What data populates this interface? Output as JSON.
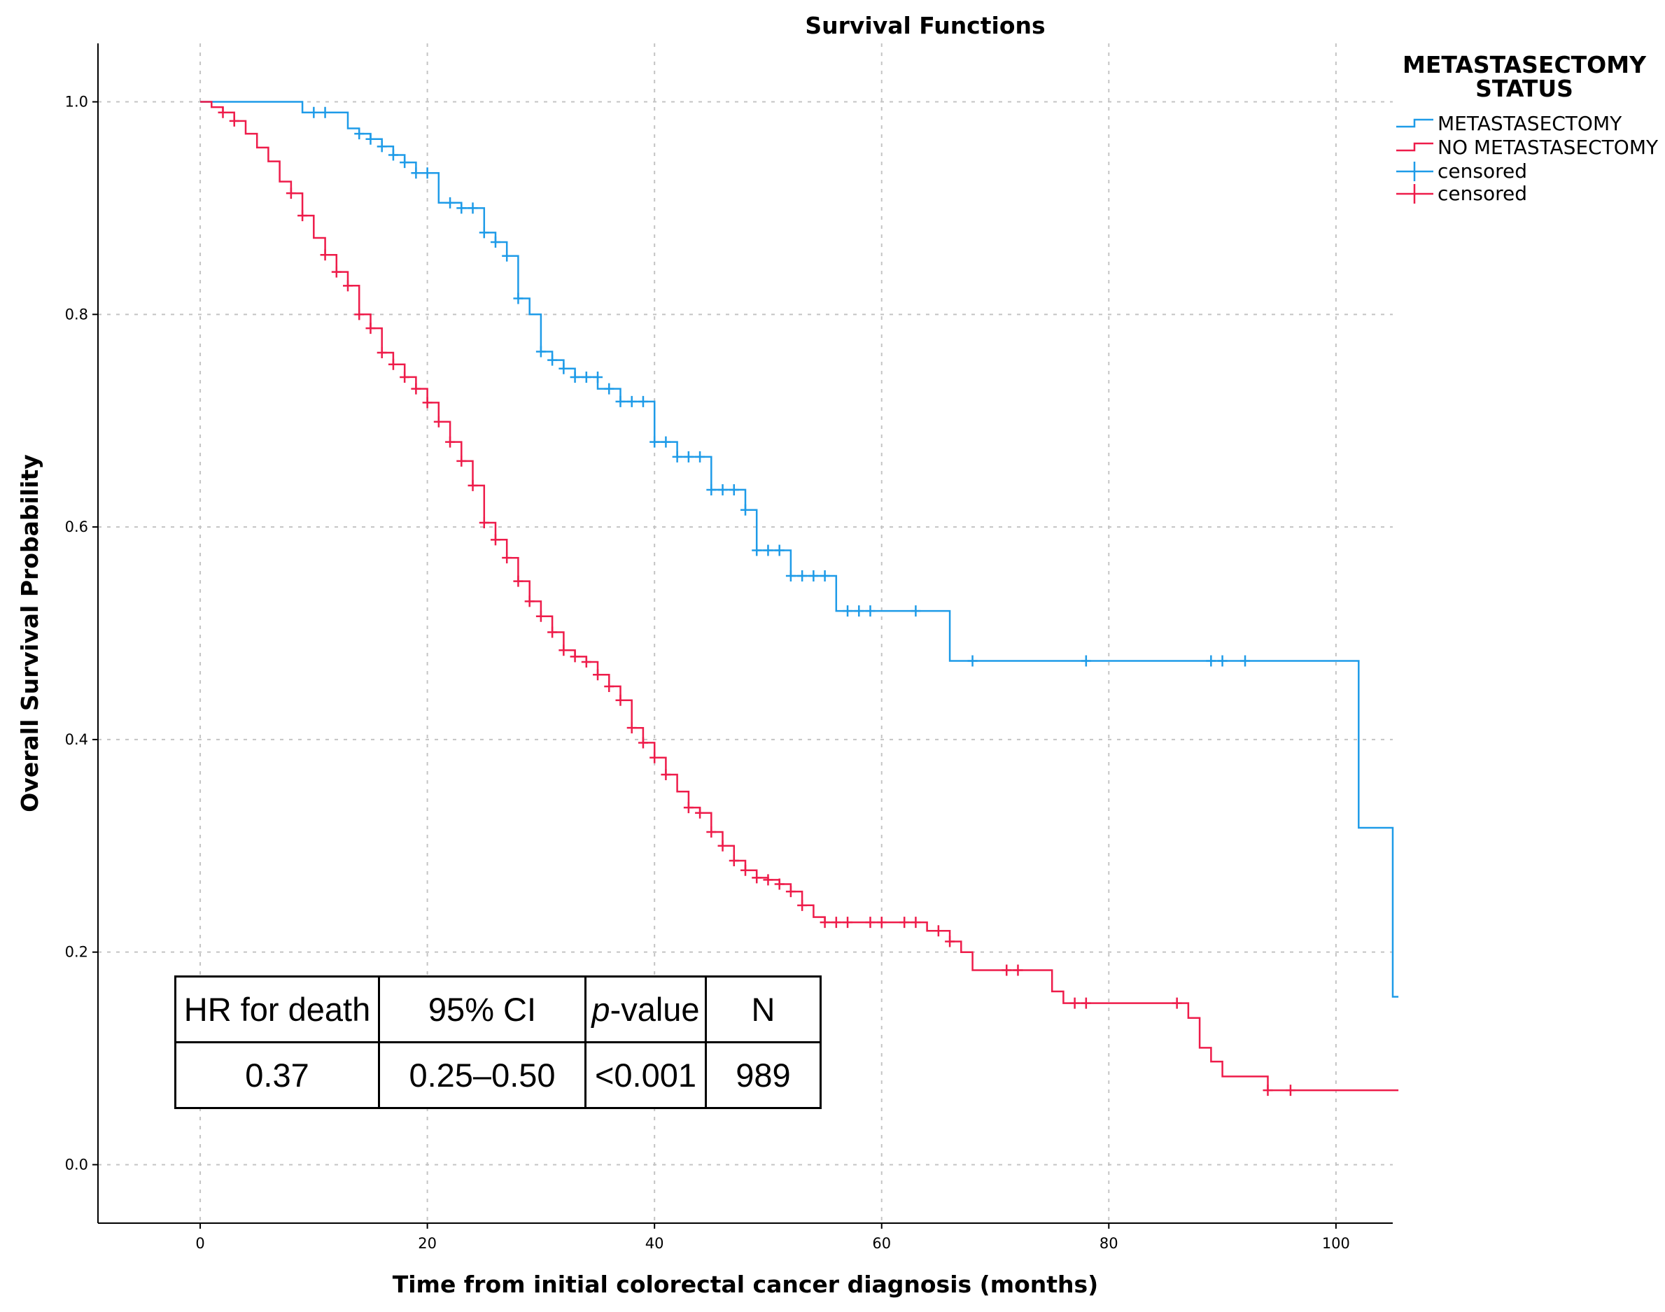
{
  "chart_data": {
    "type": "line",
    "title": "Survival Functions",
    "xlabel": "Time from initial colorectal cancer diagnosis (months)",
    "ylabel": "Overall Survival Probability",
    "xlim": [
      -9,
      105
    ],
    "ylim": [
      -0.055,
      1.055
    ],
    "x_ticks": [
      0,
      20,
      40,
      60,
      80,
      100
    ],
    "y_ticks": [
      0.0,
      0.2,
      0.4,
      0.6,
      0.8,
      1.0
    ],
    "x_tick_labels": [
      "0",
      "20",
      "40",
      "60",
      "80",
      "100"
    ],
    "y_tick_labels": [
      "0.0",
      "0.2",
      "0.4",
      "0.6",
      "0.8",
      "1.0"
    ],
    "grid": true,
    "legend": {
      "title_line1": "METASTASECTOMY",
      "title_line2": "STATUS",
      "position": "top-right",
      "entries": [
        {
          "label": "METASTASECTOMY",
          "kind": "step",
          "color": "#1e9be8"
        },
        {
          "label": "NO METASTASECTOMY",
          "kind": "step",
          "color": "#ee1c4a"
        },
        {
          "label": "censored",
          "kind": "censor",
          "color": "#1e9be8"
        },
        {
          "label": "censored",
          "kind": "censor",
          "color": "#ee1c4a"
        }
      ]
    },
    "series": [
      {
        "name": "METASTASECTOMY",
        "color": "#1e9be8",
        "steps": [
          [
            0,
            1.0
          ],
          [
            9,
            0.99
          ],
          [
            13,
            0.975
          ],
          [
            14,
            0.97
          ],
          [
            15,
            0.965
          ],
          [
            16,
            0.958
          ],
          [
            17,
            0.95
          ],
          [
            18,
            0.943
          ],
          [
            19,
            0.933
          ],
          [
            21,
            0.905
          ],
          [
            23,
            0.9
          ],
          [
            25,
            0.877
          ],
          [
            26,
            0.868
          ],
          [
            27,
            0.855
          ],
          [
            28,
            0.815
          ],
          [
            29,
            0.8
          ],
          [
            30,
            0.765
          ],
          [
            31,
            0.757
          ],
          [
            32,
            0.749
          ],
          [
            33,
            0.741
          ],
          [
            35,
            0.73
          ],
          [
            37,
            0.718
          ],
          [
            40,
            0.68
          ],
          [
            42,
            0.666
          ],
          [
            45,
            0.635
          ],
          [
            48,
            0.616
          ],
          [
            49,
            0.578
          ],
          [
            52,
            0.554
          ],
          [
            56,
            0.521
          ],
          [
            66,
            0.474
          ],
          [
            102,
            0.317
          ],
          [
            105,
            0.158
          ]
        ],
        "end_x": 105.5,
        "censored": [
          [
            10,
            0.99
          ],
          [
            11,
            0.99
          ],
          [
            14,
            0.97
          ],
          [
            15,
            0.965
          ],
          [
            16,
            0.958
          ],
          [
            17,
            0.95
          ],
          [
            18,
            0.943
          ],
          [
            19,
            0.933
          ],
          [
            20,
            0.933
          ],
          [
            22,
            0.905
          ],
          [
            23,
            0.9
          ],
          [
            24,
            0.9
          ],
          [
            25,
            0.877
          ],
          [
            26,
            0.868
          ],
          [
            27,
            0.855
          ],
          [
            28,
            0.815
          ],
          [
            30,
            0.765
          ],
          [
            31,
            0.757
          ],
          [
            32,
            0.749
          ],
          [
            33,
            0.741
          ],
          [
            34,
            0.741
          ],
          [
            35,
            0.741
          ],
          [
            36,
            0.73
          ],
          [
            37,
            0.718
          ],
          [
            38,
            0.718
          ],
          [
            39,
            0.718
          ],
          [
            40,
            0.68
          ],
          [
            41,
            0.68
          ],
          [
            42,
            0.666
          ],
          [
            43,
            0.666
          ],
          [
            44,
            0.666
          ],
          [
            45,
            0.635
          ],
          [
            46,
            0.635
          ],
          [
            47,
            0.635
          ],
          [
            48,
            0.616
          ],
          [
            49,
            0.578
          ],
          [
            50,
            0.578
          ],
          [
            51,
            0.578
          ],
          [
            52,
            0.554
          ],
          [
            53,
            0.554
          ],
          [
            54,
            0.554
          ],
          [
            55,
            0.554
          ],
          [
            57,
            0.521
          ],
          [
            58,
            0.521
          ],
          [
            59,
            0.521
          ],
          [
            63,
            0.521
          ],
          [
            68,
            0.474
          ],
          [
            78,
            0.474
          ],
          [
            89,
            0.474
          ],
          [
            90,
            0.474
          ],
          [
            92,
            0.474
          ]
        ]
      },
      {
        "name": "NO METASTASECTOMY",
        "color": "#ee1c4a",
        "steps": [
          [
            0,
            1.0
          ],
          [
            1,
            0.995
          ],
          [
            2,
            0.99
          ],
          [
            3,
            0.982
          ],
          [
            4,
            0.97
          ],
          [
            5,
            0.957
          ],
          [
            6,
            0.944
          ],
          [
            7,
            0.925
          ],
          [
            8,
            0.914
          ],
          [
            9,
            0.893
          ],
          [
            10,
            0.872
          ],
          [
            11,
            0.856
          ],
          [
            12,
            0.84
          ],
          [
            13,
            0.827
          ],
          [
            14,
            0.8
          ],
          [
            15,
            0.787
          ],
          [
            16,
            0.764
          ],
          [
            17,
            0.753
          ],
          [
            18,
            0.741
          ],
          [
            19,
            0.73
          ],
          [
            20,
            0.717
          ],
          [
            21,
            0.699
          ],
          [
            22,
            0.68
          ],
          [
            23,
            0.662
          ],
          [
            24,
            0.639
          ],
          [
            25,
            0.604
          ],
          [
            26,
            0.588
          ],
          [
            27,
            0.571
          ],
          [
            28,
            0.549
          ],
          [
            29,
            0.53
          ],
          [
            30,
            0.516
          ],
          [
            31,
            0.501
          ],
          [
            32,
            0.484
          ],
          [
            33,
            0.478
          ],
          [
            34,
            0.473
          ],
          [
            35,
            0.461
          ],
          [
            36,
            0.45
          ],
          [
            37,
            0.437
          ],
          [
            38,
            0.411
          ],
          [
            39,
            0.397
          ],
          [
            40,
            0.383
          ],
          [
            41,
            0.367
          ],
          [
            42,
            0.351
          ],
          [
            43,
            0.336
          ],
          [
            44,
            0.331
          ],
          [
            45,
            0.313
          ],
          [
            46,
            0.3
          ],
          [
            47,
            0.286
          ],
          [
            48,
            0.277
          ],
          [
            49,
            0.27
          ],
          [
            50,
            0.268
          ],
          [
            51,
            0.264
          ],
          [
            52,
            0.257
          ],
          [
            53,
            0.244
          ],
          [
            54,
            0.233
          ],
          [
            55,
            0.228
          ],
          [
            64,
            0.22
          ],
          [
            66,
            0.21
          ],
          [
            67,
            0.2
          ],
          [
            68,
            0.183
          ],
          [
            75,
            0.163
          ],
          [
            76,
            0.152
          ],
          [
            87,
            0.138
          ],
          [
            88,
            0.11
          ],
          [
            89,
            0.097
          ],
          [
            90,
            0.083
          ],
          [
            94,
            0.07
          ]
        ],
        "end_x": 105.5,
        "censored": [
          [
            2,
            0.99
          ],
          [
            3,
            0.982
          ],
          [
            8,
            0.914
          ],
          [
            9,
            0.893
          ],
          [
            11,
            0.856
          ],
          [
            12,
            0.84
          ],
          [
            13,
            0.827
          ],
          [
            14,
            0.8
          ],
          [
            15,
            0.787
          ],
          [
            16,
            0.764
          ],
          [
            17,
            0.753
          ],
          [
            18,
            0.741
          ],
          [
            19,
            0.73
          ],
          [
            20,
            0.717
          ],
          [
            21,
            0.699
          ],
          [
            22,
            0.68
          ],
          [
            23,
            0.662
          ],
          [
            24,
            0.639
          ],
          [
            25,
            0.604
          ],
          [
            26,
            0.588
          ],
          [
            27,
            0.571
          ],
          [
            28,
            0.549
          ],
          [
            29,
            0.53
          ],
          [
            30,
            0.516
          ],
          [
            31,
            0.501
          ],
          [
            32,
            0.484
          ],
          [
            33,
            0.478
          ],
          [
            34,
            0.473
          ],
          [
            35,
            0.461
          ],
          [
            36,
            0.45
          ],
          [
            37,
            0.437
          ],
          [
            38,
            0.411
          ],
          [
            39,
            0.397
          ],
          [
            40,
            0.383
          ],
          [
            41,
            0.367
          ],
          [
            43,
            0.336
          ],
          [
            44,
            0.331
          ],
          [
            45,
            0.313
          ],
          [
            46,
            0.3
          ],
          [
            47,
            0.286
          ],
          [
            48,
            0.277
          ],
          [
            49,
            0.27
          ],
          [
            50,
            0.268
          ],
          [
            51,
            0.264
          ],
          [
            52,
            0.257
          ],
          [
            53,
            0.244
          ],
          [
            55,
            0.228
          ],
          [
            56,
            0.228
          ],
          [
            57,
            0.228
          ],
          [
            59,
            0.228
          ],
          [
            60,
            0.228
          ],
          [
            62,
            0.228
          ],
          [
            63,
            0.228
          ],
          [
            65,
            0.22
          ],
          [
            66,
            0.21
          ],
          [
            71,
            0.183
          ],
          [
            72,
            0.183
          ],
          [
            77,
            0.152
          ],
          [
            78,
            0.152
          ],
          [
            86,
            0.152
          ],
          [
            94,
            0.07
          ],
          [
            96,
            0.07
          ]
        ]
      }
    ]
  },
  "hr_table": {
    "headers": {
      "hr": "HR for death",
      "ci": "95% CI",
      "p_italic": "p",
      "p_rest": "-value",
      "n": "N"
    },
    "values": {
      "hr": "0.37",
      "ci": "0.25–0.50",
      "p": "<0.001",
      "n": "989"
    }
  }
}
